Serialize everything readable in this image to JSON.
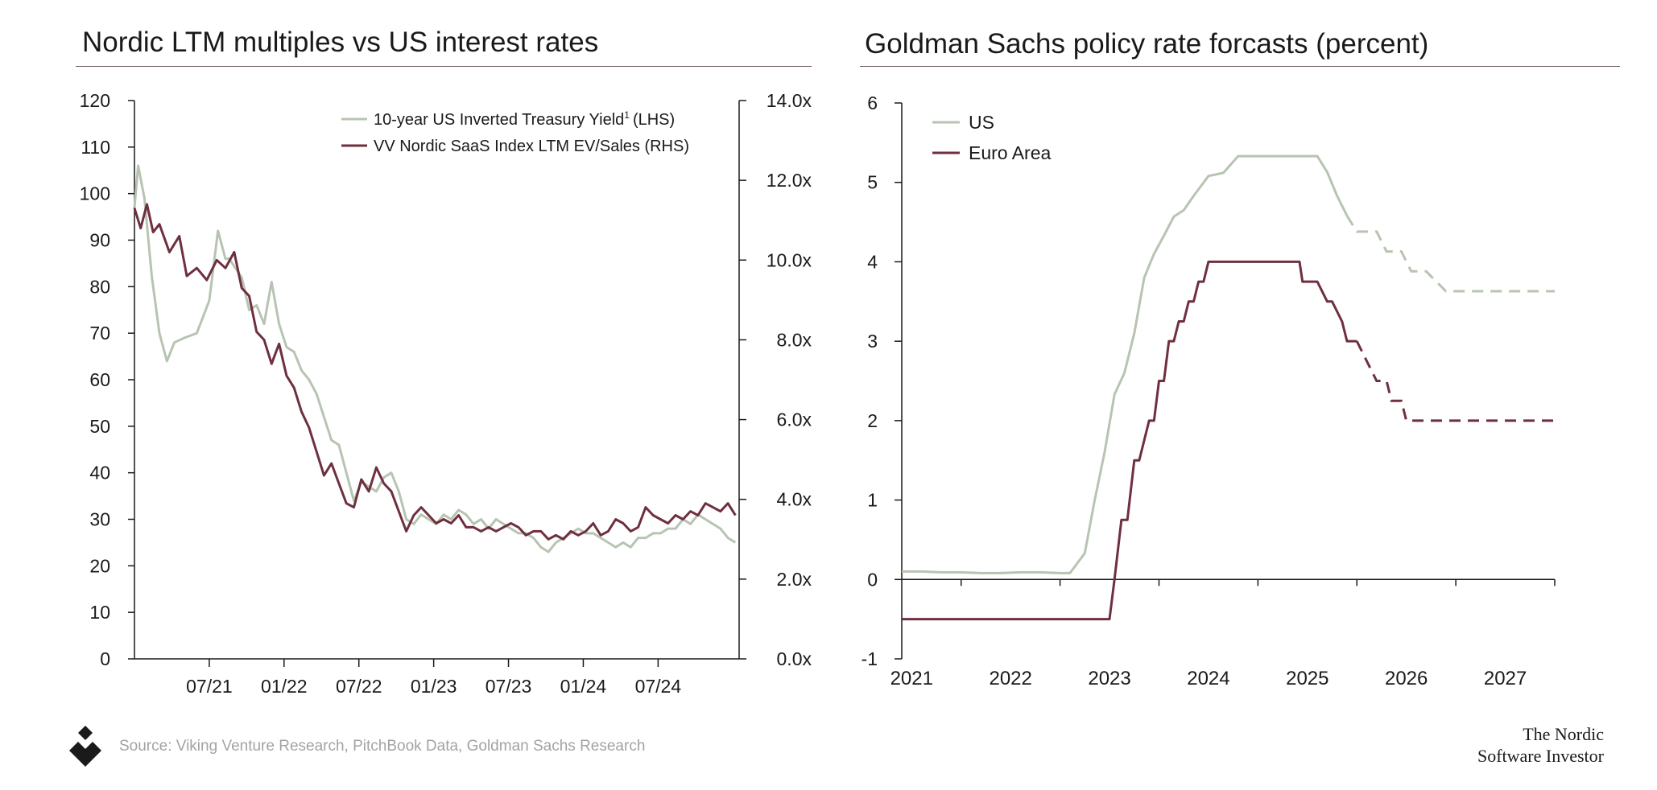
{
  "left": {
    "title": "Nordic LTM multiples vs US interest rates"
  },
  "right": {
    "title": "Goldman Sachs policy rate forcasts (percent)"
  },
  "source": "Source: Viking Venture Research, PitchBook Data, Goldman Sachs Research",
  "brand": {
    "line1": "The Nordic",
    "line2": "Software Investor"
  },
  "colors": {
    "us_series": "#b8c4b2",
    "eu_series": "#6e2f3e",
    "axis": "#1a1a1a"
  },
  "chart_data": [
    {
      "type": "line",
      "title": "Nordic LTM multiples vs US interest rates",
      "x_tick_labels": [
        "07/21",
        "01/22",
        "07/22",
        "01/23",
        "07/23",
        "01/24",
        "07/24"
      ],
      "x_tick_months": [
        6,
        12,
        18,
        24,
        30,
        36,
        42
      ],
      "x_range_months": [
        0,
        48.5
      ],
      "x_origin": "01/21",
      "y_left": {
        "ylim": [
          0,
          120
        ],
        "ticks": [
          0,
          10,
          20,
          30,
          40,
          50,
          60,
          70,
          80,
          90,
          100,
          110,
          120
        ]
      },
      "y_right": {
        "ylim": [
          0,
          14
        ],
        "ticks": [
          "0.0x",
          "2.0x",
          "4.0x",
          "6.0x",
          "8.0x",
          "10.0x",
          "12.0x",
          "14.0x"
        ],
        "tick_values": [
          0,
          2,
          4,
          6,
          8,
          10,
          12,
          14
        ]
      },
      "legend": {
        "position": "top-right",
        "entries": [
          "10-year US Inverted Treasury Yield",
          "VV Nordic SaaS Index LTM EV/Sales (RHS)"
        ]
      },
      "legend_us_sup": "1",
      "legend_us_suffix": "(LHS)",
      "series": [
        {
          "name": "10-year US Inverted Treasury Yield (LHS)",
          "axis": "left",
          "x_months": [
            0,
            0.3,
            0.8,
            1.4,
            2.0,
            2.6,
            3.2,
            4.0,
            5.0,
            6.0,
            6.7,
            7.3,
            7.6,
            8.1,
            8.6,
            9.2,
            9.8,
            10.4,
            11.0,
            11.6,
            12.2,
            12.8,
            13.4,
            14.0,
            14.6,
            15.2,
            15.8,
            16.4,
            17.0,
            17.6,
            18.2,
            18.8,
            19.4,
            20.0,
            20.6,
            21.2,
            21.8,
            22.4,
            23.0,
            23.6,
            24.2,
            24.8,
            25.4,
            26.0,
            26.6,
            27.2,
            27.8,
            28.4,
            29.0,
            29.6,
            30.2,
            30.8,
            31.4,
            32.0,
            32.6,
            33.2,
            33.8,
            34.4,
            35.0,
            35.6,
            36.2,
            36.8,
            37.4,
            38.0,
            38.6,
            39.2,
            39.8,
            40.4,
            41.0,
            41.6,
            42.2,
            42.8,
            43.4,
            44.0,
            44.6,
            45.2,
            45.8,
            46.4,
            47.0,
            47.6,
            48.2
          ],
          "values": [
            97,
            106,
            99,
            82,
            70,
            64,
            68,
            69,
            70,
            77,
            92,
            86,
            86,
            84,
            82,
            75,
            76,
            72,
            81,
            72,
            67,
            66,
            62,
            60,
            57,
            52,
            47,
            46,
            40,
            34,
            38,
            37,
            36,
            39,
            40,
            36,
            30,
            29,
            31,
            30,
            29,
            31,
            30,
            32,
            31,
            29,
            30,
            28,
            30,
            29,
            28,
            27,
            27,
            26,
            24,
            23,
            25,
            26,
            27,
            28,
            27,
            27,
            26,
            25,
            24,
            25,
            24,
            26,
            26,
            27,
            27,
            28,
            28,
            30,
            29,
            31,
            30,
            29,
            28,
            26,
            25
          ]
        },
        {
          "name": "VV Nordic SaaS Index LTM EV/Sales (RHS)",
          "axis": "right",
          "x_months": [
            0,
            0.5,
            1.0,
            1.5,
            2.0,
            2.8,
            3.6,
            4.2,
            5.0,
            5.8,
            6.6,
            7.3,
            8.0,
            8.6,
            9.2,
            9.8,
            10.4,
            11.0,
            11.6,
            12.2,
            12.8,
            13.4,
            14.0,
            14.6,
            15.2,
            15.8,
            16.4,
            17.0,
            17.6,
            18.2,
            18.8,
            19.4,
            20.0,
            20.6,
            21.2,
            21.8,
            22.4,
            23.0,
            23.6,
            24.2,
            24.8,
            25.4,
            26.0,
            26.6,
            27.2,
            27.8,
            28.4,
            29.0,
            29.6,
            30.2,
            30.8,
            31.4,
            32.0,
            32.6,
            33.2,
            33.8,
            34.4,
            35.0,
            35.6,
            36.2,
            36.8,
            37.4,
            38.0,
            38.6,
            39.2,
            39.8,
            40.4,
            41.0,
            41.6,
            42.2,
            42.8,
            43.4,
            44.0,
            44.6,
            45.2,
            45.8,
            46.4,
            47.0,
            47.6,
            48.2
          ],
          "values": [
            11.3,
            10.8,
            11.4,
            10.7,
            10.9,
            10.2,
            10.6,
            9.6,
            9.8,
            9.5,
            10.0,
            9.8,
            10.2,
            9.3,
            9.1,
            8.2,
            8.0,
            7.4,
            7.9,
            7.1,
            6.8,
            6.2,
            5.8,
            5.2,
            4.6,
            4.9,
            4.4,
            3.9,
            3.8,
            4.5,
            4.2,
            4.8,
            4.4,
            4.2,
            3.7,
            3.2,
            3.6,
            3.8,
            3.6,
            3.4,
            3.5,
            3.4,
            3.6,
            3.3,
            3.3,
            3.2,
            3.3,
            3.2,
            3.3,
            3.4,
            3.3,
            3.1,
            3.2,
            3.2,
            3.0,
            3.1,
            3.0,
            3.2,
            3.1,
            3.2,
            3.4,
            3.1,
            3.2,
            3.5,
            3.4,
            3.2,
            3.3,
            3.8,
            3.6,
            3.5,
            3.4,
            3.6,
            3.5,
            3.7,
            3.6,
            3.9,
            3.8,
            3.7,
            3.9,
            3.6
          ]
        }
      ]
    },
    {
      "type": "line",
      "title": "Goldman Sachs policy rate forcasts (percent)",
      "xlabel": "",
      "ylabel": "",
      "x_tick_labels": [
        "2021",
        "2022",
        "2023",
        "2024",
        "2025",
        "2026",
        "2027"
      ],
      "xlim": [
        2020.4,
        2027.0
      ],
      "ylim": [
        -1,
        6
      ],
      "y_ticks": [
        -1,
        0,
        1,
        2,
        3,
        4,
        5,
        6
      ],
      "legend": {
        "position": "top-left",
        "entries": [
          "US",
          "Euro Area"
        ]
      },
      "series": [
        {
          "name": "US",
          "actual": {
            "x": [
              2020.4,
              2020.6,
              2020.8,
              2021.0,
              2021.2,
              2021.4,
              2021.6,
              2021.8,
              2022.0,
              2022.1,
              2022.25,
              2022.35,
              2022.45,
              2022.55,
              2022.65,
              2022.75,
              2022.85,
              2022.95,
              2023.05,
              2023.15,
              2023.25,
              2023.35,
              2023.5,
              2023.65,
              2023.8,
              2024.0,
              2024.2,
              2024.4,
              2024.6,
              2024.7,
              2024.8,
              2024.9
            ],
            "values": [
              0.1,
              0.1,
              0.09,
              0.09,
              0.08,
              0.08,
              0.09,
              0.09,
              0.08,
              0.08,
              0.33,
              1.0,
              1.6,
              2.33,
              2.6,
              3.1,
              3.8,
              4.1,
              4.33,
              4.57,
              4.65,
              4.83,
              5.08,
              5.12,
              5.33,
              5.33,
              5.33,
              5.33,
              5.33,
              5.13,
              4.83,
              4.58
            ]
          },
          "forecast": {
            "x": [
              2024.9,
              2025.0,
              2025.1,
              2025.2,
              2025.3,
              2025.45,
              2025.55,
              2025.7,
              2025.9,
              2026.2,
              2026.6,
              2027.0
            ],
            "values": [
              4.58,
              4.38,
              4.38,
              4.38,
              4.13,
              4.13,
              3.88,
              3.88,
              3.63,
              3.63,
              3.63,
              3.63
            ]
          }
        },
        {
          "name": "Euro Area",
          "actual": {
            "x": [
              2020.4,
              2020.8,
              2021.2,
              2021.6,
              2022.0,
              2022.4,
              2022.5,
              2022.55,
              2022.62,
              2022.68,
              2022.75,
              2022.8,
              2022.9,
              2022.95,
              2023.0,
              2023.05,
              2023.1,
              2023.15,
              2023.2,
              2023.25,
              2023.3,
              2023.35,
              2023.4,
              2023.45,
              2023.5,
              2023.55,
              2023.6,
              2023.65,
              2023.7,
              2023.8,
              2024.0,
              2024.2,
              2024.3,
              2024.42,
              2024.45,
              2024.6,
              2024.7,
              2024.75,
              2024.85,
              2024.9,
              2025.0
            ],
            "values": [
              -0.5,
              -0.5,
              -0.5,
              -0.5,
              -0.5,
              -0.5,
              -0.5,
              0.0,
              0.75,
              0.75,
              1.5,
              1.5,
              2.0,
              2.0,
              2.5,
              2.5,
              3.0,
              3.0,
              3.25,
              3.25,
              3.5,
              3.5,
              3.75,
              3.75,
              4.0,
              4.0,
              4.0,
              4.0,
              4.0,
              4.0,
              4.0,
              4.0,
              4.0,
              4.0,
              3.75,
              3.75,
              3.5,
              3.5,
              3.25,
              3.0,
              3.0
            ]
          },
          "forecast": {
            "x": [
              2025.0,
              2025.1,
              2025.2,
              2025.3,
              2025.35,
              2025.45,
              2025.5,
              2025.6,
              2026.0,
              2026.5,
              2027.0
            ],
            "values": [
              3.0,
              2.75,
              2.5,
              2.5,
              2.25,
              2.25,
              2.0,
              2.0,
              2.0,
              2.0,
              2.0
            ]
          }
        }
      ]
    }
  ]
}
